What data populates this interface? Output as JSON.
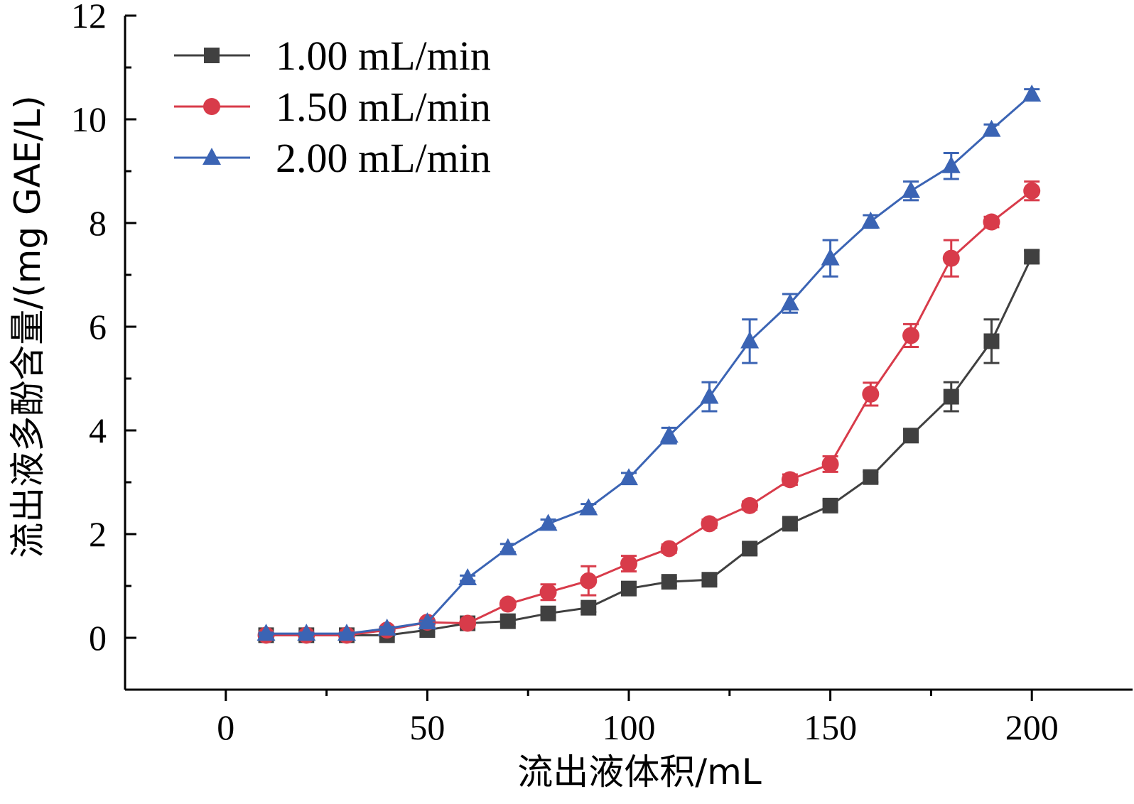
{
  "chart_data": {
    "type": "line",
    "xlabel": "流出液体积/mL",
    "ylabel": "流出液多酚含量/(mg GAE/L)",
    "xlim": [
      -25,
      225
    ],
    "ylim": [
      -1,
      12
    ],
    "x_ticks": [
      0,
      50,
      100,
      150,
      200
    ],
    "y_ticks": [
      0,
      2,
      4,
      6,
      8,
      10,
      12
    ],
    "grid": false,
    "legend_position": "top-left",
    "x": [
      10,
      20,
      30,
      40,
      50,
      60,
      70,
      80,
      90,
      100,
      110,
      120,
      130,
      140,
      150,
      160,
      170,
      180,
      190,
      200
    ],
    "series": [
      {
        "name": "1.00 mL/min",
        "color": "#404040",
        "marker": "square",
        "values": [
          0.05,
          0.05,
          0.05,
          0.05,
          0.15,
          0.28,
          0.32,
          0.47,
          0.58,
          0.95,
          1.08,
          1.12,
          1.72,
          2.2,
          2.55,
          3.1,
          3.9,
          4.65,
          5.72,
          7.35
        ],
        "errors": [
          0.02,
          0.02,
          0.02,
          0.02,
          0.03,
          0.03,
          0.05,
          0.06,
          0.08,
          0.08,
          0.08,
          0.08,
          0.1,
          0.1,
          0.1,
          0.1,
          0.12,
          0.28,
          0.42,
          0.12
        ]
      },
      {
        "name": "1.50 mL/min",
        "color": "#d83b4a",
        "marker": "circle",
        "values": [
          0.05,
          0.05,
          0.05,
          0.15,
          0.3,
          0.28,
          0.65,
          0.88,
          1.1,
          1.43,
          1.72,
          2.2,
          2.55,
          3.05,
          3.35,
          4.7,
          5.83,
          7.32,
          8.02,
          8.62
        ],
        "errors": [
          0.02,
          0.02,
          0.02,
          0.03,
          0.04,
          0.04,
          0.06,
          0.15,
          0.28,
          0.15,
          0.08,
          0.08,
          0.08,
          0.1,
          0.15,
          0.22,
          0.22,
          0.35,
          0.1,
          0.18
        ]
      },
      {
        "name": "2.00 mL/min",
        "color": "#3b64b4",
        "marker": "triangle",
        "values": [
          0.08,
          0.08,
          0.08,
          0.18,
          0.3,
          1.15,
          1.73,
          2.2,
          2.5,
          3.08,
          3.9,
          4.65,
          5.72,
          6.45,
          7.32,
          8.03,
          8.62,
          9.1,
          9.8,
          10.48
        ],
        "errors": [
          0.02,
          0.02,
          0.02,
          0.03,
          0.03,
          0.05,
          0.08,
          0.08,
          0.08,
          0.1,
          0.15,
          0.28,
          0.42,
          0.18,
          0.35,
          0.12,
          0.18,
          0.25,
          0.1,
          0.1
        ]
      }
    ]
  }
}
